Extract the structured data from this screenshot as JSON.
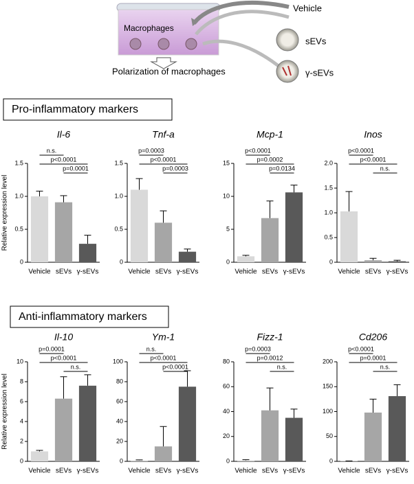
{
  "diagram": {
    "dish_label": "Macrophages",
    "treatments": [
      "Vehicle",
      "sEVs",
      "γ-sEVs"
    ],
    "outcome": "Polarization of macrophages"
  },
  "sections": [
    "Pro-inflammatory markers",
    "Anti-inflammatory markers"
  ],
  "chart_data": [
    {
      "type": "bar",
      "title": "Il-6",
      "ylabel": "Relative expression level",
      "categories": [
        "Vehicle",
        "sEVs",
        "γ-sEVs"
      ],
      "values": [
        1.0,
        0.91,
        0.28
      ],
      "errors": [
        0.08,
        0.1,
        0.13
      ],
      "colors": [
        "#d9d9d9",
        "#a6a6a6",
        "#595959"
      ],
      "ylim": [
        0,
        1.5
      ],
      "yticks": [
        0,
        0.5,
        {
          "value": 1,
          "label": "1.0"
        },
        1.5
      ],
      "significance": [
        "n.s.",
        "p<0.0001",
        "p=0.0001"
      ]
    },
    {
      "type": "bar",
      "title": "Tnf-a",
      "categories": [
        "Vehicle",
        "sEVs",
        "γ-sEVs"
      ],
      "values": [
        1.1,
        0.6,
        0.16
      ],
      "errors": [
        0.17,
        0.18,
        0.04
      ],
      "colors": [
        "#d9d9d9",
        "#a6a6a6",
        "#595959"
      ],
      "ylim": [
        0,
        1.5
      ],
      "yticks": [
        0,
        0.5,
        {
          "value": 1,
          "label": "1.0"
        },
        1.5
      ],
      "significance": [
        "p=0.0003",
        "p<0.0001",
        "p=0.0003"
      ]
    },
    {
      "type": "bar",
      "title": "Mcp-1",
      "categories": [
        "Vehicle",
        "sEVs",
        "γ-sEVs"
      ],
      "values": [
        0.9,
        6.7,
        10.6
      ],
      "errors": [
        0.15,
        2.6,
        1.1
      ],
      "colors": [
        "#d9d9d9",
        "#a6a6a6",
        "#595959"
      ],
      "ylim": [
        0,
        15
      ],
      "yticks": [
        0,
        5,
        10,
        15
      ],
      "significance": [
        "p<0.0001",
        "p=0.0002",
        "p=0.0134"
      ]
    },
    {
      "type": "bar",
      "title": "Inos",
      "categories": [
        "Vehicle",
        "sEVs",
        "γ-sEVs"
      ],
      "values": [
        1.03,
        0.04,
        0.02
      ],
      "errors": [
        0.4,
        0.04,
        0.02
      ],
      "colors": [
        "#d9d9d9",
        "#a6a6a6",
        "#595959"
      ],
      "ylim": [
        0,
        2
      ],
      "yticks": [
        0,
        0.5,
        {
          "value": 1,
          "label": "1.0"
        },
        1.5,
        {
          "value": 2,
          "label": "2.0"
        }
      ],
      "significance": [
        "p<0.0001",
        "p<0.0001",
        "n.s."
      ]
    },
    {
      "type": "bar",
      "title": "Il-10",
      "ylabel": "Relative expression level",
      "categories": [
        "Vehicle",
        "sEVs",
        "γ-sEVs"
      ],
      "values": [
        1.0,
        6.3,
        7.6
      ],
      "errors": [
        0.1,
        2.2,
        1.1
      ],
      "colors": [
        "#d9d9d9",
        "#a6a6a6",
        "#595959"
      ],
      "ylim": [
        0,
        10
      ],
      "yticks": [
        0,
        2,
        4,
        6,
        8,
        10
      ],
      "significance": [
        "p=0.0001",
        "p<0.0001",
        "n.s."
      ]
    },
    {
      "type": "bar",
      "title": "Ym-1",
      "categories": [
        "Vehicle",
        "sEVs",
        "γ-sEVs"
      ],
      "values": [
        1,
        15,
        75
      ],
      "errors": [
        0.5,
        20,
        16
      ],
      "colors": [
        "#d9d9d9",
        "#a6a6a6",
        "#595959"
      ],
      "ylim": [
        0,
        100
      ],
      "yticks": [
        0,
        20,
        40,
        60,
        80,
        100
      ],
      "significance": [
        "n.s.",
        "p<0.0001",
        "p<0.0001"
      ]
    },
    {
      "type": "bar",
      "title": "Fizz-1",
      "categories": [
        "Vehicle",
        "sEVs",
        "γ-sEVs"
      ],
      "values": [
        0.8,
        41,
        35
      ],
      "errors": [
        0.5,
        18,
        7
      ],
      "colors": [
        "#d9d9d9",
        "#a6a6a6",
        "#595959"
      ],
      "ylim": [
        0,
        80
      ],
      "yticks": [
        0,
        20,
        40,
        60,
        80
      ],
      "significance": [
        "p=0.0003",
        "p=0.0012",
        "n.s."
      ]
    },
    {
      "type": "bar",
      "title": "Cd206",
      "categories": [
        "Vehicle",
        "sEVs",
        "γ-sEVs"
      ],
      "values": [
        0.5,
        98,
        131
      ],
      "errors": [
        0.3,
        27,
        23
      ],
      "colors": [
        "#d9d9d9",
        "#a6a6a6",
        "#595959"
      ],
      "ylim": [
        0,
        200
      ],
      "yticks": [
        0,
        50,
        100,
        150,
        200
      ],
      "significance": [
        "p<0.0001",
        "p=0.0001",
        "n.s."
      ]
    }
  ]
}
